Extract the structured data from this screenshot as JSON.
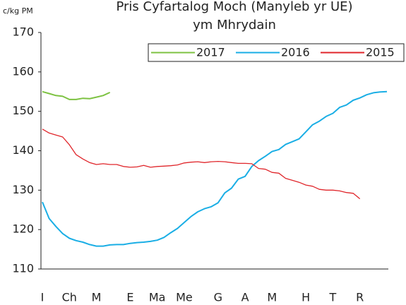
{
  "chart_data": {
    "type": "line",
    "title": [
      "Pris Cyfartalog Moch (Manyleb yr UE)",
      "ym Mhrydain"
    ],
    "y_label": "c/kg PM",
    "categories": [
      "I",
      null,
      null,
      null,
      "Ch",
      null,
      null,
      null,
      "M",
      null,
      null,
      null,
      null,
      "E",
      null,
      null,
      null,
      "Ma",
      null,
      null,
      null,
      "Me",
      null,
      null,
      null,
      null,
      "G",
      null,
      null,
      null,
      "A",
      null,
      null,
      null,
      "M",
      null,
      null,
      null,
      null,
      "H",
      null,
      null,
      null,
      "T",
      null,
      null,
      null,
      "R",
      null,
      null,
      null,
      null
    ],
    "ylim": [
      110,
      170
    ],
    "yticks": [
      110,
      120,
      130,
      140,
      150,
      160,
      170
    ],
    "legend": "top-right",
    "series": [
      {
        "name": "2017",
        "color": "#7dc242",
        "values": [
          155,
          154.5,
          154,
          153.8,
          153,
          153,
          153.3,
          153.2,
          153.6,
          154,
          154.8,
          null,
          null,
          null,
          null,
          null,
          null,
          null,
          null,
          null,
          null,
          null,
          null,
          null,
          null,
          null,
          null,
          null,
          null,
          null,
          null,
          null,
          null,
          null,
          null,
          null,
          null,
          null,
          null,
          null,
          null,
          null,
          null,
          null,
          null,
          null,
          null,
          null,
          null,
          null,
          null,
          null
        ]
      },
      {
        "name": "2016",
        "color": "#1aaee5",
        "values": [
          127,
          122.8,
          120.8,
          119,
          117.8,
          117.2,
          116.8,
          116.2,
          115.8,
          115.8,
          116.1,
          116.2,
          116.2,
          116.5,
          116.7,
          116.8,
          117,
          117.3,
          118,
          119.2,
          120.3,
          121.8,
          123.3,
          124.5,
          125.3,
          125.8,
          126.8,
          129.3,
          130.5,
          132.8,
          133.5,
          136,
          137.5,
          138.6,
          139.8,
          140.3,
          141.6,
          142.3,
          143,
          144.8,
          146.6,
          147.5,
          148.7,
          149.5,
          151,
          151.6,
          152.8,
          153.4,
          154.2,
          154.7,
          154.9,
          155
        ]
      },
      {
        "name": "2015",
        "color": "#e0262b",
        "values": [
          145.5,
          144.5,
          144,
          143.5,
          141.5,
          139,
          137.9,
          137,
          136.5,
          136.7,
          136.5,
          136.5,
          136,
          135.8,
          135.9,
          136.3,
          135.8,
          136,
          136.1,
          136.2,
          136.4,
          136.9,
          137.1,
          137.2,
          137,
          137.2,
          137.3,
          137.2,
          137,
          136.8,
          136.8,
          136.7,
          135.5,
          135.3,
          134.5,
          134.3,
          133,
          132.5,
          132,
          131.3,
          131,
          130.2,
          130,
          130,
          129.8,
          129.4,
          129.2,
          127.8,
          null,
          null,
          null,
          null
        ]
      }
    ]
  }
}
